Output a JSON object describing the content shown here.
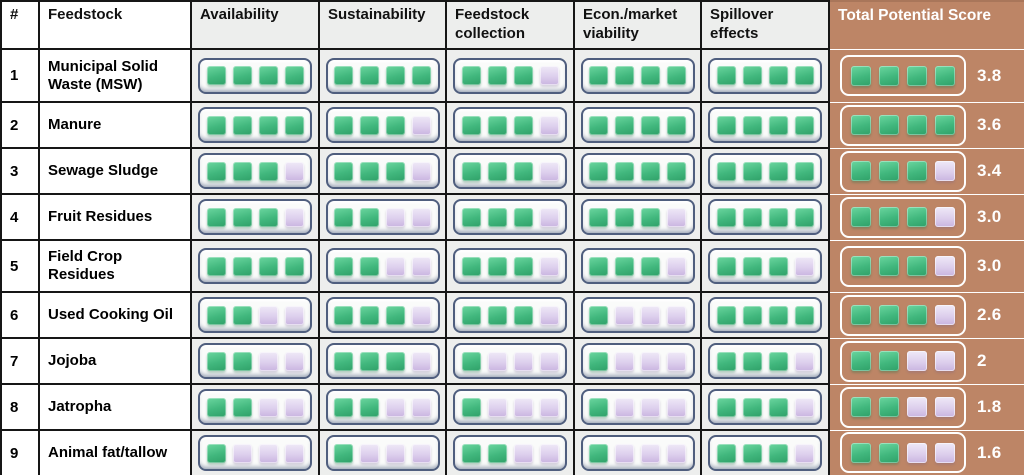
{
  "colors": {
    "total_column_brown": "#bd8566",
    "filled_square_green": "#41b77d",
    "empty_square_lavender": "#d3c1e5",
    "rating_cell_gray": "#edeeed",
    "widget_border_slate": "#4f5e7e",
    "grid_border_black": "#161616",
    "score_text_white": "#ffffff"
  },
  "chart_data": {
    "type": "table",
    "title": "",
    "rating_scale": {
      "min": 0,
      "max": 4,
      "filled_icon": "green-square",
      "empty_icon": "lavender-square"
    },
    "columns": [
      "#",
      "Feedstock",
      "Availability",
      "Sustainability",
      "Feedstock collection",
      "Econ./market viability",
      "Spillover effects",
      "Total Potential Score"
    ],
    "column_keys": [
      "num",
      "feedstock",
      "availability",
      "sustainability",
      "collection",
      "econ-market",
      "spillover",
      "total"
    ],
    "rows": [
      {
        "num": "1",
        "feedstock": "Municipal Solid Waste (MSW)",
        "ratings": [
          4,
          4,
          3,
          4,
          4
        ],
        "total_filled": 4,
        "score": "3.8"
      },
      {
        "num": "2",
        "feedstock": "Manure",
        "ratings": [
          4,
          3,
          3,
          4,
          4
        ],
        "total_filled": 4,
        "score": "3.6"
      },
      {
        "num": "3",
        "feedstock": "Sewage Sludge",
        "ratings": [
          3,
          3,
          3,
          4,
          4
        ],
        "total_filled": 3,
        "score": "3.4"
      },
      {
        "num": "4",
        "feedstock": "Fruit Residues",
        "ratings": [
          3,
          2,
          3,
          3,
          4
        ],
        "total_filled": 3,
        "score": "3.0"
      },
      {
        "num": "5",
        "feedstock": "Field Crop Residues",
        "ratings": [
          4,
          2,
          3,
          3,
          3
        ],
        "total_filled": 3,
        "score": "3.0"
      },
      {
        "num": "6",
        "feedstock": "Used Cooking Oil",
        "ratings": [
          2,
          3,
          3,
          1,
          4
        ],
        "total_filled": 3,
        "score": "2.6"
      },
      {
        "num": "7",
        "feedstock": "Jojoba",
        "ratings": [
          2,
          3,
          1,
          1,
          3
        ],
        "total_filled": 2,
        "score": "2"
      },
      {
        "num": "8",
        "feedstock": "Jatropha",
        "ratings": [
          2,
          2,
          1,
          1,
          3
        ],
        "total_filled": 2,
        "score": "1.8"
      },
      {
        "num": "9",
        "feedstock": "Animal fat/tallow",
        "ratings": [
          1,
          1,
          2,
          1,
          3
        ],
        "total_filled": 2,
        "score": "1.6"
      }
    ]
  }
}
